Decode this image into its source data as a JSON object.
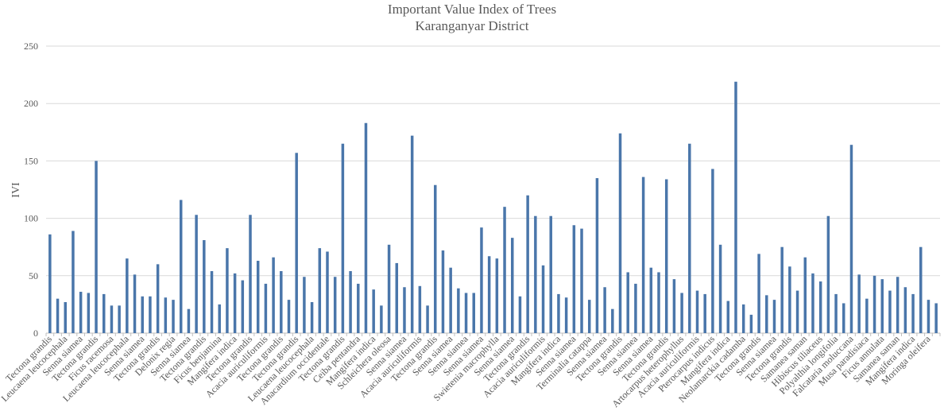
{
  "chart_data": {
    "type": "bar",
    "title": "Important Value Index of Trees",
    "subtitle": "Karanganyar District",
    "xlabel": "",
    "ylabel": "IVI",
    "ylim": [
      0,
      250
    ],
    "yticks": [
      0,
      50,
      100,
      150,
      200,
      250
    ],
    "grid": true,
    "legend": "none",
    "bar_color": "#4a76aa",
    "grid_color": "#d9d9d9",
    "categories": [
      "Tectona grandis",
      "",
      "Leucaena leucocephala",
      "",
      "Senna siamea",
      "",
      "Tectona grandis",
      "",
      "Ficus racemosa",
      "",
      "Leucaena leucocephala",
      "",
      "Senna siamea",
      "",
      "Tectona grandis",
      "",
      "Delonix regia",
      "",
      "Senna siamea",
      "",
      "Tectona grandis",
      "",
      "Ficus benjamina",
      "",
      "Mangifera indica",
      "",
      "Tectona grandis",
      "",
      "Acacia auriculiformis",
      "",
      "Tectona grandis",
      "",
      "Tectona grandis",
      "",
      "Leucaena leucocephala",
      "",
      "Anacardium occidentale",
      "",
      "Tectona grandis",
      "",
      "Ceiba pentandra",
      "",
      "Mangifera indica",
      "",
      "Schleichera oleosa",
      "",
      "Senna siamea",
      "",
      "Acacia auriculiformis",
      "",
      "Tectona grandis",
      "",
      "Senna siamea",
      "",
      "Senna siamea",
      "",
      "Senna siamea",
      "",
      "Swietenia macrophylla",
      "",
      "Senna siamea",
      "",
      "Tectona grandis",
      "",
      "Acacia auriculiformis",
      "",
      "Mangifera indica",
      "",
      "Senna siamea",
      "",
      "Terminalia catappa",
      "",
      "Senna siamea",
      "",
      "Tectona grandis",
      "",
      "Senna siamea",
      "",
      "Senna siamea",
      "",
      "Tectona grandis",
      "",
      "Artocarpus heterophyllus",
      "",
      "Acacia auriculiformis",
      "",
      "Pterocarpus indicus",
      "",
      "Mangifera indica",
      "",
      "Neolamarckia cadamba",
      "",
      "Tectona grandis",
      "",
      "Senna siamea",
      "",
      "Tectona grandis",
      "",
      "Samanea saman",
      "",
      "Hibiscus tiliaceus",
      "",
      "Polyalthia longifolia",
      "",
      "Falcataria moluccana",
      "",
      "Musa paradisiaca",
      "",
      "Ficus annulata",
      "",
      "Samanea saman",
      "",
      "Mangifera indica",
      "",
      "Moringa oleifera",
      ""
    ],
    "values": [
      86,
      30,
      27,
      89,
      36,
      35,
      150,
      34,
      24,
      24,
      65,
      51,
      32,
      32,
      60,
      31,
      29,
      116,
      21,
      103,
      81,
      54,
      25,
      74,
      52,
      46,
      103,
      63,
      43,
      66,
      54,
      29,
      157,
      49,
      27,
      74,
      71,
      49,
      165,
      54,
      43,
      183,
      38,
      24,
      77,
      61,
      40,
      172,
      41,
      24,
      129,
      72,
      57,
      39,
      35,
      35,
      92,
      67,
      65,
      110,
      83,
      32,
      120,
      102,
      59,
      102,
      34,
      31,
      94,
      91,
      29,
      135,
      40,
      21,
      174,
      53,
      43,
      136,
      57,
      53,
      134,
      47,
      35,
      165,
      37,
      34,
      143,
      77,
      28,
      219,
      25,
      16,
      69,
      33,
      29,
      75,
      58,
      37,
      66,
      52,
      45,
      102,
      34,
      26,
      164,
      51,
      30,
      50,
      47,
      37,
      49,
      40,
      34,
      75,
      29,
      26
    ]
  }
}
